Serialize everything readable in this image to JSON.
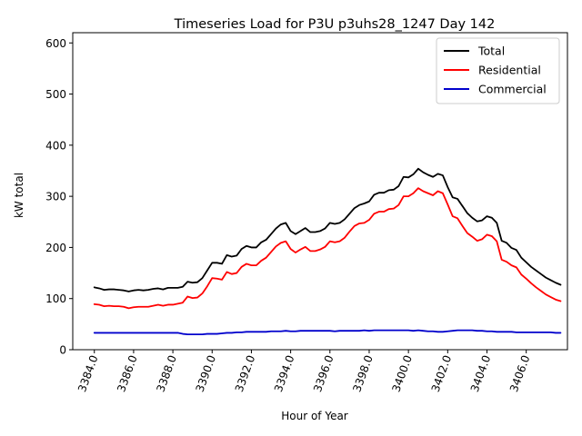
{
  "chart_data": {
    "type": "line",
    "title": "Timeseries Load for P3U p3uhs28_1247  Day 142",
    "xlabel": "Hour of Year",
    "ylabel": "kW total",
    "xlim": [
      3382.9,
      3408.1
    ],
    "ylim": [
      0,
      620
    ],
    "xticks": [
      3384,
      3386,
      3388,
      3390,
      3392,
      3394,
      3396,
      3398,
      3400,
      3402,
      3404,
      3406
    ],
    "xtick_labels": [
      "3384.0",
      "3386.0",
      "3388.0",
      "3390.0",
      "3392.0",
      "3394.0",
      "3396.0",
      "3398.0",
      "3400.0",
      "3402.0",
      "3404.0",
      "3406.0"
    ],
    "yticks": [
      0,
      100,
      200,
      300,
      400,
      500,
      600
    ],
    "ytick_labels": [
      "0",
      "100",
      "200",
      "300",
      "400",
      "500",
      "600"
    ],
    "legend_position": "top-right",
    "grid": false,
    "x": [
      3384.0,
      3384.25,
      3384.5,
      3384.75,
      3385.0,
      3385.25,
      3385.5,
      3385.75,
      3386.0,
      3386.25,
      3386.5,
      3386.75,
      3387.0,
      3387.25,
      3387.5,
      3387.75,
      3388.0,
      3388.25,
      3388.5,
      3388.75,
      3389.0,
      3389.25,
      3389.5,
      3389.75,
      3390.0,
      3390.25,
      3390.5,
      3390.75,
      3391.0,
      3391.25,
      3391.5,
      3391.75,
      3392.0,
      3392.25,
      3392.5,
      3392.75,
      3393.0,
      3393.25,
      3393.5,
      3393.75,
      3394.0,
      3394.25,
      3394.5,
      3394.75,
      3395.0,
      3395.25,
      3395.5,
      3395.75,
      3396.0,
      3396.25,
      3396.5,
      3396.75,
      3397.0,
      3397.25,
      3397.5,
      3397.75,
      3398.0,
      3398.25,
      3398.5,
      3398.75,
      3399.0,
      3399.25,
      3399.5,
      3399.75,
      3400.0,
      3400.25,
      3400.5,
      3400.75,
      3401.0,
      3401.25,
      3401.5,
      3401.75,
      3402.0,
      3402.25,
      3402.5,
      3402.75,
      3403.0,
      3403.25,
      3403.5,
      3403.75,
      3404.0,
      3404.25,
      3404.5,
      3404.75,
      3405.0,
      3405.25,
      3405.5,
      3405.75,
      3406.0,
      3406.25,
      3406.5,
      3406.75,
      3407.0,
      3407.25,
      3407.5,
      3407.75
    ],
    "series": [
      {
        "name": "Total",
        "color": "#000000",
        "values": [
          122,
          120,
          117,
          118,
          118,
          117,
          116,
          114,
          116,
          117,
          116,
          117,
          119,
          120,
          118,
          121,
          121,
          121,
          123,
          133,
          131,
          132,
          140,
          155,
          170,
          170,
          168,
          185,
          182,
          184,
          197,
          203,
          200,
          200,
          210,
          215,
          226,
          237,
          245,
          248,
          232,
          226,
          232,
          238,
          230,
          230,
          232,
          237,
          248,
          246,
          248,
          255,
          266,
          277,
          283,
          286,
          290,
          303,
          307,
          307,
          312,
          313,
          320,
          338,
          337,
          343,
          354,
          347,
          342,
          338,
          344,
          341,
          318,
          298,
          295,
          281,
          267,
          258,
          251,
          253,
          261,
          258,
          248,
          213,
          209,
          199,
          195,
          180,
          171,
          162,
          155,
          148,
          141,
          136,
          131,
          127
        ]
      },
      {
        "name": "Residential",
        "color": "#ff0000",
        "values": [
          89,
          88,
          85,
          86,
          85,
          85,
          84,
          81,
          83,
          84,
          84,
          84,
          86,
          88,
          86,
          88,
          88,
          90,
          92,
          104,
          101,
          102,
          110,
          124,
          140,
          139,
          137,
          152,
          148,
          150,
          162,
          168,
          165,
          165,
          174,
          180,
          191,
          202,
          209,
          212,
          197,
          190,
          196,
          201,
          193,
          193,
          196,
          201,
          212,
          210,
          212,
          219,
          231,
          242,
          247,
          248,
          254,
          266,
          270,
          270,
          275,
          276,
          283,
          300,
          300,
          306,
          316,
          310,
          306,
          302,
          310,
          306,
          284,
          261,
          257,
          242,
          228,
          221,
          213,
          216,
          225,
          222,
          212,
          176,
          172,
          165,
          161,
          147,
          139,
          130,
          122,
          115,
          108,
          103,
          98,
          95
        ]
      },
      {
        "name": "Commercial",
        "color": "#0000cc",
        "values": [
          33,
          33,
          33,
          33,
          33,
          33,
          33,
          33,
          33,
          33,
          33,
          33,
          33,
          33,
          33,
          33,
          33,
          33,
          31,
          30,
          30,
          30,
          30,
          31,
          31,
          31,
          32,
          33,
          33,
          34,
          34,
          35,
          35,
          35,
          35,
          35,
          36,
          36,
          36,
          37,
          36,
          36,
          37,
          37,
          37,
          37,
          37,
          37,
          37,
          36,
          37,
          37,
          37,
          37,
          37,
          38,
          37,
          38,
          38,
          38,
          38,
          38,
          38,
          38,
          38,
          37,
          38,
          37,
          36,
          36,
          35,
          35,
          36,
          37,
          38,
          38,
          38,
          38,
          37,
          37,
          36,
          36,
          35,
          35,
          35,
          35,
          34,
          34,
          34,
          34,
          34,
          34,
          34,
          34,
          33,
          33
        ]
      }
    ]
  }
}
